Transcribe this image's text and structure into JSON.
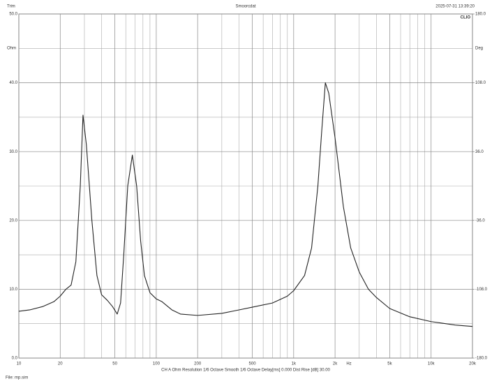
{
  "chart_data": {
    "type": "line",
    "log_x": true,
    "header_left": "Trim",
    "title": "Smoorcdat",
    "timestamp": "2025-07-31 13:39:20",
    "brand": "CLIO",
    "ylabel": "Ohm",
    "y2label": "Deg",
    "xlabel": "Hz",
    "footer": "CH A   Ohm   Resolution 1/6 Octave   Smooth 1/6 Octave   Delay[ms] 0.000   Dist Rise [dB] 30.00",
    "file": "File: mp.sim",
    "xlim": [
      10,
      20000
    ],
    "xticks": [
      10,
      20,
      50,
      100,
      200,
      500,
      {
        "value": 1000,
        "label": "1k"
      },
      {
        "value": 2000,
        "label": "2k"
      },
      {
        "value": 5000,
        "label": "5k"
      },
      {
        "value": 10000,
        "label": "10k"
      },
      {
        "value": 20000,
        "label": "20k"
      }
    ],
    "xminor_ticks": [
      30,
      40,
      60,
      70,
      80,
      90,
      300,
      400,
      600,
      700,
      800,
      900,
      3000,
      4000,
      6000,
      7000,
      8000,
      9000
    ],
    "ylim": [
      0,
      50
    ],
    "yticks": [
      {
        "value": 0,
        "label": "0.0"
      },
      {
        "value": 10,
        "label": "10.0"
      },
      {
        "value": 20,
        "label": "20.0"
      },
      {
        "value": 30,
        "label": "30.0"
      },
      {
        "value": 40,
        "label": "40.0"
      },
      {
        "value": 50,
        "label": "50.0"
      }
    ],
    "yminor_ticks": [
      5,
      15,
      25,
      35,
      45
    ],
    "y2lim": [
      -180,
      180
    ],
    "y2ticks": [
      {
        "value": -180,
        "label": "-180.0"
      },
      {
        "value": -108,
        "label": "-108.0"
      },
      {
        "value": -36,
        "label": "-36.0"
      },
      {
        "value": 36,
        "label": "36.0"
      },
      {
        "value": 108,
        "label": "108.0"
      },
      {
        "value": 180,
        "label": "180.0"
      }
    ],
    "grid": true,
    "series": [
      {
        "color": "#222222",
        "x": [
          10,
          12,
          15,
          18,
          20,
          22,
          24,
          26,
          28,
          29.3,
          31,
          34,
          37,
          40,
          44,
          48,
          52,
          55,
          58,
          62,
          67,
          72,
          77,
          82,
          90,
          100,
          110,
          130,
          150,
          200,
          300,
          400,
          500,
          700,
          900,
          1000,
          1200,
          1350,
          1500,
          1600,
          1700,
          1800,
          2000,
          2300,
          2600,
          3000,
          3500,
          4000,
          5000,
          7000,
          10000,
          15000,
          20000
        ],
        "values": [
          6.8,
          7.0,
          7.5,
          8.2,
          9.0,
          10.0,
          10.6,
          14,
          25,
          35.3,
          31,
          20,
          12,
          9.2,
          8.4,
          7.5,
          6.4,
          8,
          15,
          25,
          29.5,
          25,
          17,
          12,
          9.5,
          8.6,
          8.2,
          7,
          6.4,
          6.2,
          6.5,
          7,
          7.4,
          8,
          9,
          9.8,
          12,
          16,
          25,
          33,
          40,
          38.5,
          32,
          22,
          16,
          12.5,
          10,
          8.8,
          7.2,
          6,
          5.3,
          4.8,
          4.6
        ]
      }
    ]
  }
}
